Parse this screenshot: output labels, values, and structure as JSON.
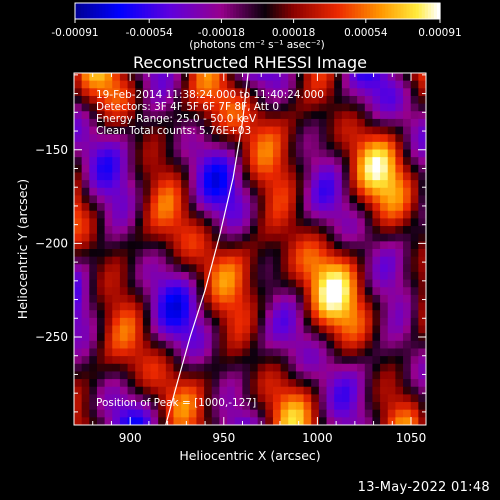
{
  "chart_data": {
    "type": "heatmap",
    "title": "Reconstructed RHESSI Image",
    "xlabel": "Heliocentric X (arcsec)",
    "ylabel": "Heliocentric Y (arcsec)",
    "xlim": [
      870,
      1058
    ],
    "ylim": [
      -297,
      -109
    ],
    "xticks": [
      900,
      950,
      1000,
      1050
    ],
    "yticks": [
      -150,
      -200,
      -250
    ],
    "colorbar": {
      "range": [
        -0.00091,
        0.00091
      ],
      "tick_values": [
        -0.00091,
        -0.00054,
        -0.00018,
        0.00018,
        0.00054,
        0.00091
      ],
      "tick_labels": [
        "-0.00091",
        "-0.00054",
        "-0.00018",
        "0.00018",
        "0.00054",
        "0.00091"
      ],
      "unit_label": "(photons cm⁻² s⁻¹ asec⁻²)"
    },
    "annotations": [
      "19-Feb-2014 11:38:24.000 to 11:40:24.000",
      "Detectors: 3F 4F 5F 6F 7F 8F, Att 0",
      "Energy Range: 25.0 - 50.0 keV",
      "Clean      Total counts: 5.76E+03"
    ],
    "peak_label": "Position of Peak = [1000,-127]",
    "peak_position": [
      1000,
      -127
    ],
    "limb_curve": {
      "x": [
        919,
        925,
        932,
        940,
        948,
        955,
        960,
        963
      ],
      "y": [
        -297,
        -275,
        -250,
        -225,
        -195,
        -165,
        -135,
        -109
      ]
    },
    "image_shape": [
      46,
      46
    ],
    "grid": false
  },
  "footer": {
    "timestamp": "13-May-2022 01:48"
  }
}
